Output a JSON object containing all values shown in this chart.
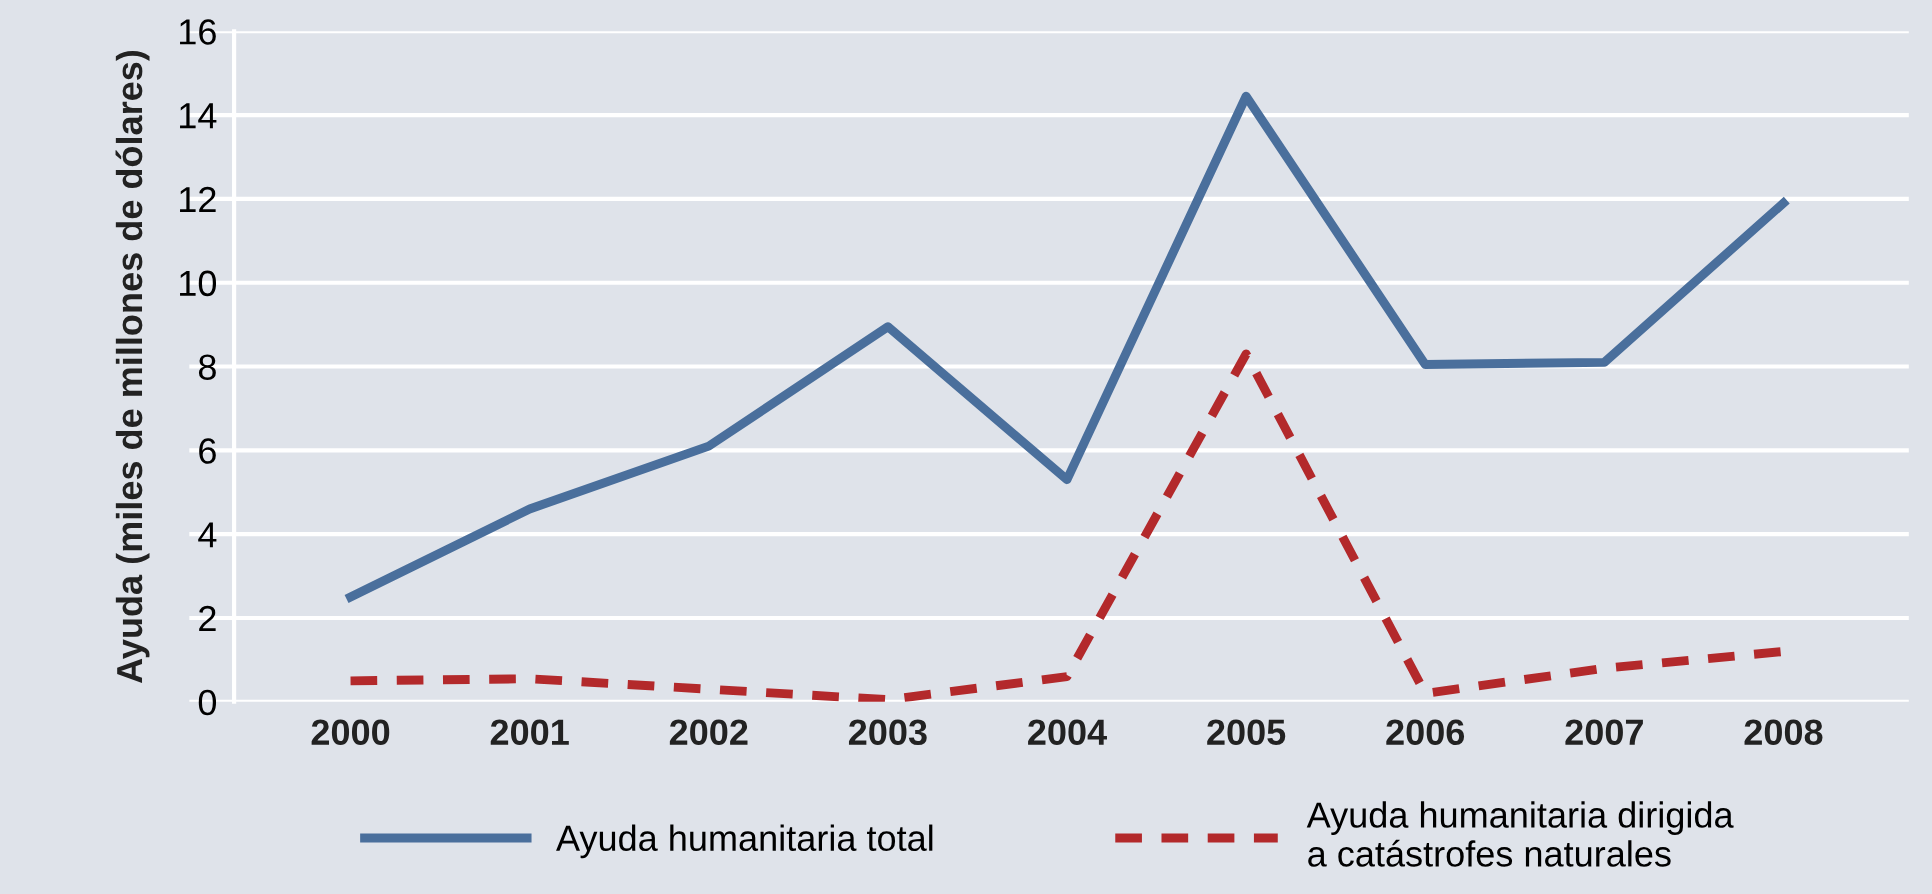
{
  "chart_data": {
    "type": "line",
    "ylabel": "Ayuda (miles de millones de dólares)",
    "categories": [
      "2000",
      "2001",
      "2002",
      "2003",
      "2004",
      "2005",
      "2006",
      "2007",
      "2008"
    ],
    "series": [
      {
        "name": "Ayuda humanitaria total",
        "color": "#4a6f9c",
        "line_style": "solid",
        "values": [
          2.5,
          4.6,
          6.1,
          8.95,
          5.3,
          14.45,
          8.05,
          8.1,
          11.9
        ]
      },
      {
        "name": "Ayuda humanitaria dirigida\na catástrofes naturales",
        "color": "#b3292b",
        "line_style": "dashed",
        "values": [
          0.5,
          0.55,
          0.3,
          0.05,
          0.6,
          8.3,
          0.2,
          0.8,
          1.2
        ]
      }
    ],
    "ylim": [
      0,
      16
    ],
    "yticks": [
      0,
      2,
      4,
      6,
      8,
      10,
      12,
      14,
      16
    ],
    "grid": "y",
    "legend": "bottom",
    "marker": "none"
  }
}
